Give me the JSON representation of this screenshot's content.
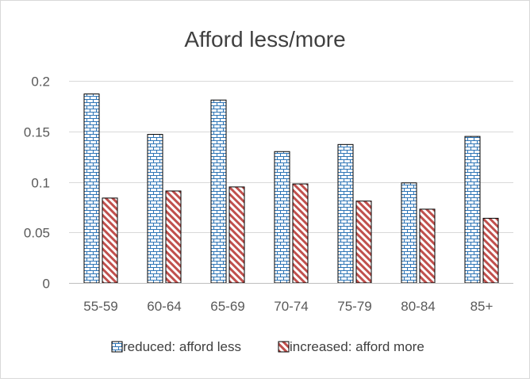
{
  "chart_data": {
    "type": "bar",
    "title": "Afford less/more",
    "xlabel": "",
    "ylabel": "",
    "categories": [
      "55-59",
      "60-64",
      "65-69",
      "70-74",
      "75-79",
      "80-84",
      "85+"
    ],
    "series": [
      {
        "name": "reduced: afford less",
        "values": [
          0.187,
          0.147,
          0.181,
          0.13,
          0.137,
          0.099,
          0.145
        ],
        "pattern": "brick",
        "color": "#2e75b6"
      },
      {
        "name": "increased: afford more",
        "values": [
          0.084,
          0.091,
          0.095,
          0.098,
          0.081,
          0.073,
          0.064
        ],
        "pattern": "diagonal-stripes",
        "color": "#c0504d"
      }
    ],
    "ylim": [
      0,
      0.2
    ],
    "yticks": [
      0,
      0.05,
      0.1,
      0.15,
      0.2
    ],
    "ytick_labels": [
      "0",
      "0.05",
      "0.1",
      "0.15",
      "0.2"
    ],
    "grid": true,
    "legend_position": "bottom"
  }
}
